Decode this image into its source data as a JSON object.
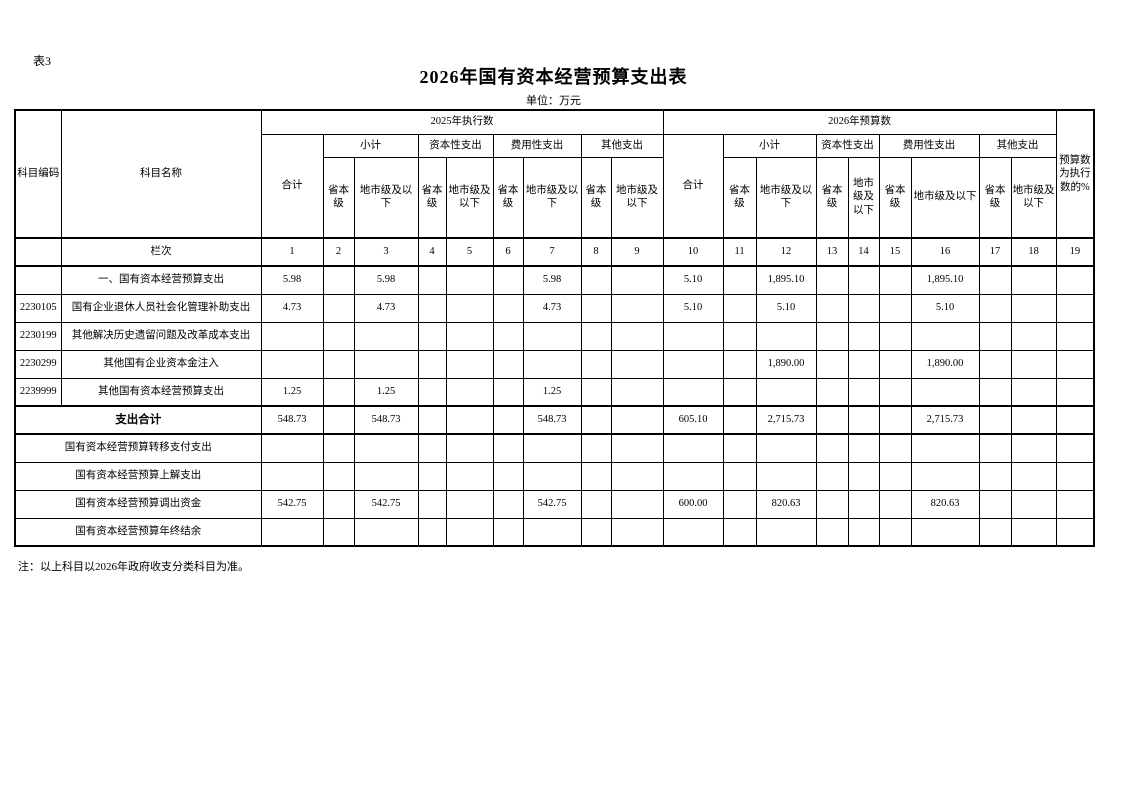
{
  "page": {
    "table_label": "表3",
    "title": "2026年国有资本经营预算支出表",
    "unit": "单位：万元",
    "note": "注：以上科目以2026年政府收支分类科目为准。"
  },
  "header": {
    "subject_code": "科目编码",
    "subject_name": "科目名称",
    "group_2025": "2025年执行数",
    "group_2026": "2026年预算数",
    "ratio": "预算数为执行数的%",
    "total": "合计",
    "subtotal": "小计",
    "capital": "资本性支出",
    "expense": "费用性支出",
    "other": "其他支出",
    "provincial": "省本级",
    "municipal": "地市级及以下",
    "lanci": "栏次",
    "col_numbers": [
      "1",
      "2",
      "3",
      "4",
      "5",
      "6",
      "7",
      "8",
      "9",
      "10",
      "11",
      "12",
      "13",
      "14",
      "15",
      "16",
      "17",
      "18",
      "19"
    ]
  },
  "rows": [
    {
      "code": "",
      "name": "一、国有资本经营预算支出",
      "merged": false,
      "bold": false,
      "values": [
        "5.98",
        "",
        "5.98",
        "",
        "",
        "",
        "5.98",
        "",
        "",
        "5.10",
        "",
        "1,895.10",
        "",
        "",
        "",
        "1,895.10",
        "",
        "",
        ""
      ]
    },
    {
      "code": "2230105",
      "name": "国有企业退休人员社会化管理补助支出",
      "merged": false,
      "bold": false,
      "values": [
        "4.73",
        "",
        "4.73",
        "",
        "",
        "",
        "4.73",
        "",
        "",
        "5.10",
        "",
        "5.10",
        "",
        "",
        "",
        "5.10",
        "",
        "",
        ""
      ]
    },
    {
      "code": "2230199",
      "name": "其他解决历史遗留问题及改革成本支出",
      "merged": false,
      "bold": false,
      "values": [
        "",
        "",
        "",
        "",
        "",
        "",
        "",
        "",
        "",
        "",
        "",
        "",
        "",
        "",
        "",
        "",
        "",
        "",
        ""
      ]
    },
    {
      "code": "2230299",
      "name": "其他国有企业资本金注入",
      "merged": false,
      "bold": false,
      "values": [
        "",
        "",
        "",
        "",
        "",
        "",
        "",
        "",
        "",
        "",
        "",
        "1,890.00",
        "",
        "",
        "",
        "1,890.00",
        "",
        "",
        ""
      ]
    },
    {
      "code": "2239999",
      "name": "其他国有资本经营预算支出",
      "merged": false,
      "bold": false,
      "values": [
        "1.25",
        "",
        "1.25",
        "",
        "",
        "",
        "1.25",
        "",
        "",
        "",
        "",
        "",
        "",
        "",
        "",
        "",
        "",
        "",
        ""
      ]
    },
    {
      "code": "",
      "name": "支出合计",
      "merged": true,
      "bold": true,
      "values": [
        "548.73",
        "",
        "548.73",
        "",
        "",
        "",
        "548.73",
        "",
        "",
        "605.10",
        "",
        "2,715.73",
        "",
        "",
        "",
        "2,715.73",
        "",
        "",
        ""
      ]
    },
    {
      "code": "",
      "name": "国有资本经营预算转移支付支出",
      "merged": true,
      "bold": false,
      "values": [
        "",
        "",
        "",
        "",
        "",
        "",
        "",
        "",
        "",
        "",
        "",
        "",
        "",
        "",
        "",
        "",
        "",
        "",
        ""
      ]
    },
    {
      "code": "",
      "name": "国有资本经营预算上解支出",
      "merged": true,
      "bold": false,
      "values": [
        "",
        "",
        "",
        "",
        "",
        "",
        "",
        "",
        "",
        "",
        "",
        "",
        "",
        "",
        "",
        "",
        "",
        "",
        ""
      ]
    },
    {
      "code": "",
      "name": "国有资本经营预算调出资金",
      "merged": true,
      "bold": false,
      "values": [
        "542.75",
        "",
        "542.75",
        "",
        "",
        "",
        "542.75",
        "",
        "",
        "600.00",
        "",
        "820.63",
        "",
        "",
        "",
        "820.63",
        "",
        "",
        ""
      ]
    },
    {
      "code": "",
      "name": "国有资本经营预算年终结余",
      "merged": true,
      "bold": false,
      "values": [
        "",
        "",
        "",
        "",
        "",
        "",
        "",
        "",
        "",
        "",
        "",
        "",
        "",
        "",
        "",
        "",
        "",
        "",
        ""
      ]
    }
  ]
}
